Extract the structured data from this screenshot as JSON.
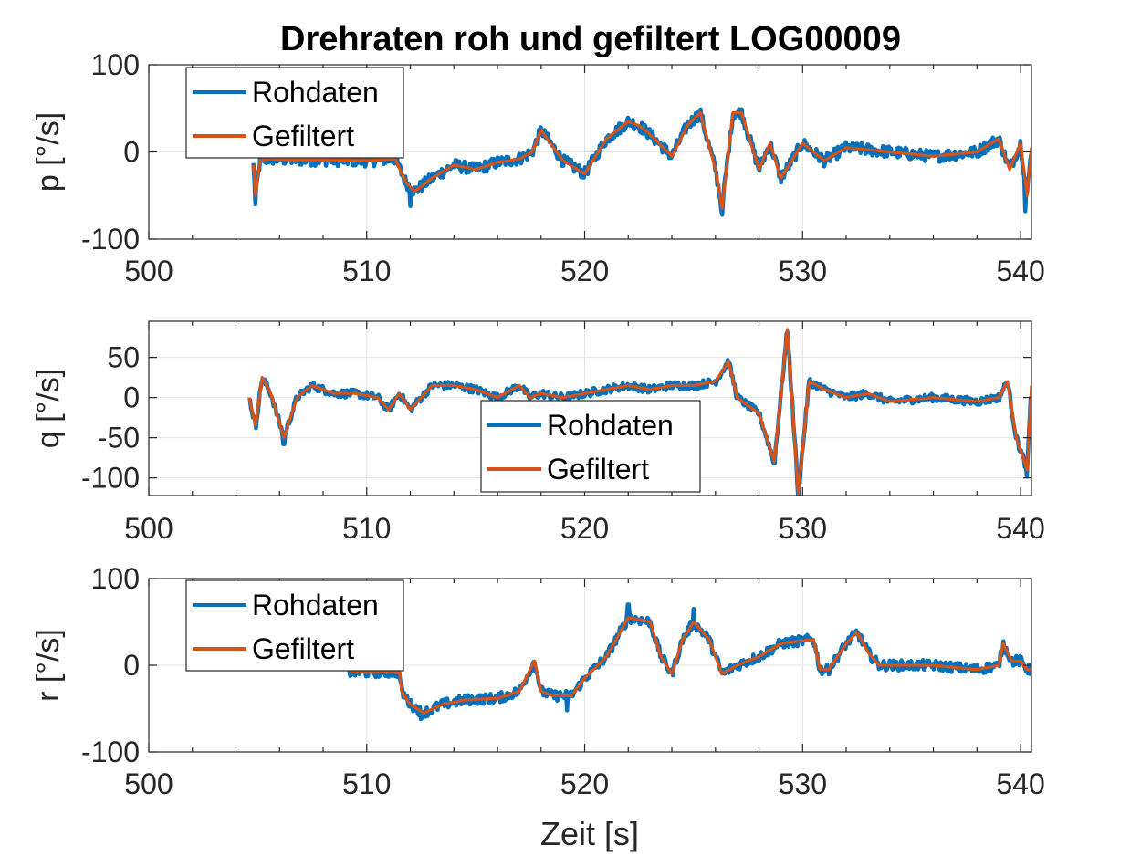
{
  "chart_data": {
    "type": "line",
    "title": "Drehraten roh und gefiltert LOG00009",
    "xlabel": "Zeit [s]",
    "xlim": [
      500,
      540.5
    ],
    "xticks": [
      500,
      510,
      520,
      530,
      540
    ],
    "grid": true,
    "colors": {
      "raw": "#0072BD",
      "filtered": "#D95319"
    },
    "subplots": [
      {
        "ylabel": "p [°/s]",
        "ylim": [
          -100,
          100
        ],
        "yticks": [
          100,
          0,
          -100
        ],
        "legend": {
          "entries": [
            "Rohdaten",
            "Gefiltert"
          ],
          "location": "top-left"
        },
        "series": [
          {
            "name": "Rohdaten",
            "color": "#0072BD",
            "noise": 7,
            "spikes": [
              [
                504.9,
                -60
              ],
              [
                512.0,
                -62
              ],
              [
                526.3,
                -72
              ],
              [
                540.2,
                -68
              ]
            ],
            "x": [
              504.8,
              504.9,
              505.1,
              505.5,
              506.5,
              508,
              510,
              511.3,
              511.8,
              512.2,
              513,
              514,
              515,
              516,
              517,
              517.6,
              518,
              519,
              520,
              521,
              522,
              522.5,
              523,
              524,
              524.7,
              525.3,
              526,
              526.3,
              526.8,
              527.2,
              528,
              528.5,
              529,
              530,
              531,
              532,
              534,
              536,
              538,
              539,
              539.5,
              540,
              540.3,
              540.5
            ],
            "y": [
              -15,
              -50,
              -10,
              -8,
              -9,
              -9,
              -10,
              -8,
              -35,
              -45,
              -30,
              -15,
              -20,
              -12,
              -8,
              0,
              25,
              -10,
              -25,
              15,
              35,
              30,
              20,
              -5,
              30,
              45,
              -20,
              -65,
              45,
              45,
              -20,
              10,
              -30,
              10,
              -10,
              5,
              0,
              -5,
              0,
              15,
              -20,
              10,
              -50,
              5
            ]
          },
          {
            "name": "Gefiltert",
            "color": "#D95319",
            "x": [
              504.8,
              504.9,
              505.1,
              505.5,
              506.5,
              508,
              510,
              511.3,
              511.8,
              512.2,
              513,
              514,
              515,
              516,
              517,
              517.6,
              518,
              519,
              520,
              521,
              522,
              522.5,
              523,
              524,
              524.7,
              525.3,
              526,
              526.3,
              526.8,
              527.2,
              528,
              528.5,
              529,
              530,
              531,
              532,
              534,
              536,
              538,
              539,
              539.5,
              540,
              540.3,
              540.5
            ],
            "y": [
              -15,
              -50,
              -10,
              -8,
              -9,
              -9,
              -10,
              -8,
              -35,
              -45,
              -30,
              -15,
              -20,
              -12,
              -8,
              0,
              25,
              -10,
              -25,
              15,
              35,
              30,
              20,
              -5,
              30,
              45,
              -20,
              -65,
              45,
              45,
              -20,
              10,
              -30,
              10,
              -10,
              5,
              0,
              -5,
              0,
              15,
              -20,
              10,
              -50,
              5
            ]
          }
        ]
      },
      {
        "ylabel": "q [°/s]",
        "ylim": [
          -122,
          95
        ],
        "yticks": [
          50,
          0,
          -50,
          -100
        ],
        "legend": {
          "entries": [
            "Rohdaten",
            "Gefiltert"
          ],
          "location": "bottom-center"
        },
        "series": [
          {
            "name": "Rohdaten",
            "color": "#0072BD",
            "noise": 5,
            "spikes": [
              [
                504.9,
                -38
              ],
              [
                506.2,
                -58
              ],
              [
                528.7,
                -82
              ],
              [
                529.8,
                -125
              ],
              [
                540.3,
                -98
              ]
            ],
            "x": [
              504.6,
              504.9,
              505.2,
              505.6,
              506.2,
              506.8,
              507.5,
              508.5,
              509.5,
              510.5,
              511,
              511.5,
              512,
              513,
              514,
              515,
              516,
              517,
              517.5,
              518,
              519,
              520,
              521,
              522,
              523,
              524,
              525,
              526,
              526.6,
              527,
              527.5,
              528,
              528.7,
              529.3,
              529.8,
              530.3,
              531,
              532,
              533,
              534,
              536,
              538,
              539,
              539.4,
              539.8,
              540.3,
              540.5
            ],
            "y": [
              0,
              -35,
              25,
              5,
              -50,
              0,
              15,
              5,
              5,
              0,
              -15,
              5,
              -15,
              15,
              15,
              10,
              0,
              15,
              0,
              5,
              0,
              5,
              10,
              15,
              10,
              15,
              15,
              20,
              45,
              0,
              -10,
              -20,
              -80,
              85,
              -120,
              20,
              10,
              0,
              5,
              -5,
              0,
              -5,
              0,
              20,
              -50,
              -90,
              15
            ]
          },
          {
            "name": "Gefiltert",
            "color": "#D95319",
            "x": [
              504.6,
              504.9,
              505.2,
              505.6,
              506.2,
              506.8,
              507.5,
              508.5,
              509.5,
              510.5,
              511,
              511.5,
              512,
              513,
              514,
              515,
              516,
              517,
              517.5,
              518,
              519,
              520,
              521,
              522,
              523,
              524,
              525,
              526,
              526.6,
              527,
              527.5,
              528,
              528.7,
              529.3,
              529.8,
              530.3,
              531,
              532,
              533,
              534,
              536,
              538,
              539,
              539.4,
              539.8,
              540.3,
              540.5
            ],
            "y": [
              0,
              -35,
              25,
              5,
              -50,
              0,
              15,
              5,
              5,
              0,
              -15,
              5,
              -15,
              15,
              15,
              10,
              0,
              15,
              0,
              5,
              0,
              5,
              10,
              15,
              10,
              15,
              15,
              20,
              45,
              0,
              -10,
              -20,
              -80,
              85,
              -120,
              20,
              10,
              0,
              5,
              -5,
              0,
              -5,
              0,
              20,
              -50,
              -90,
              15
            ]
          }
        ]
      },
      {
        "ylabel": "r [°/s]",
        "ylim": [
          -100,
          100
        ],
        "yticks": [
          100,
          0,
          -100
        ],
        "legend": {
          "entries": [
            "Rohdaten",
            "Gefiltert"
          ],
          "location": "top-left"
        },
        "series": [
          {
            "name": "Rohdaten",
            "color": "#0072BD",
            "noise": 6,
            "spikes": [
              [
                512.5,
                -62
              ],
              [
                519.2,
                -52
              ],
              [
                522.0,
                70
              ],
              [
                525.0,
                65
              ]
            ],
            "x": [
              509.2,
              510,
              511,
              511.5,
              511.6,
              512,
              512.6,
              513.5,
              514.5,
              516,
              517,
              517.7,
              518,
              518.5,
              519.4,
              520,
              521,
              522,
              523,
              523.5,
              524,
              524.5,
              525,
              525.7,
              526.3,
              527,
              528,
              529,
              530.5,
              530.8,
              531.2,
              532,
              532.5,
              533,
              533.5,
              534,
              536,
              538,
              539,
              539.2,
              539.6,
              540,
              540.3,
              540.5
            ],
            "y": [
              -8,
              -8,
              -8,
              -8,
              -30,
              -45,
              -55,
              -45,
              -40,
              -38,
              -30,
              5,
              -30,
              -35,
              -35,
              -15,
              10,
              55,
              50,
              10,
              -10,
              30,
              50,
              30,
              -10,
              0,
              10,
              25,
              30,
              -5,
              -5,
              25,
              38,
              15,
              0,
              0,
              0,
              -5,
              0,
              25,
              5,
              5,
              -5,
              -5
            ]
          },
          {
            "name": "Gefiltert",
            "color": "#D95319",
            "x": [
              509.2,
              510,
              511,
              511.5,
              511.6,
              512,
              512.6,
              513.5,
              514.5,
              516,
              517,
              517.7,
              518,
              518.5,
              519.4,
              520,
              521,
              522,
              523,
              523.5,
              524,
              524.5,
              525,
              525.7,
              526.3,
              527,
              528,
              529,
              530.5,
              530.8,
              531.2,
              532,
              532.5,
              533,
              533.5,
              534,
              536,
              538,
              539,
              539.2,
              539.6,
              540,
              540.3,
              540.5
            ],
            "y": [
              -8,
              -8,
              -8,
              -8,
              -30,
              -45,
              -55,
              -45,
              -40,
              -38,
              -30,
              5,
              -30,
              -35,
              -35,
              -15,
              10,
              55,
              50,
              10,
              -10,
              30,
              50,
              30,
              -10,
              0,
              10,
              25,
              30,
              -5,
              -5,
              25,
              38,
              15,
              0,
              0,
              0,
              -5,
              0,
              25,
              5,
              5,
              -5,
              -5
            ]
          }
        ]
      }
    ]
  }
}
